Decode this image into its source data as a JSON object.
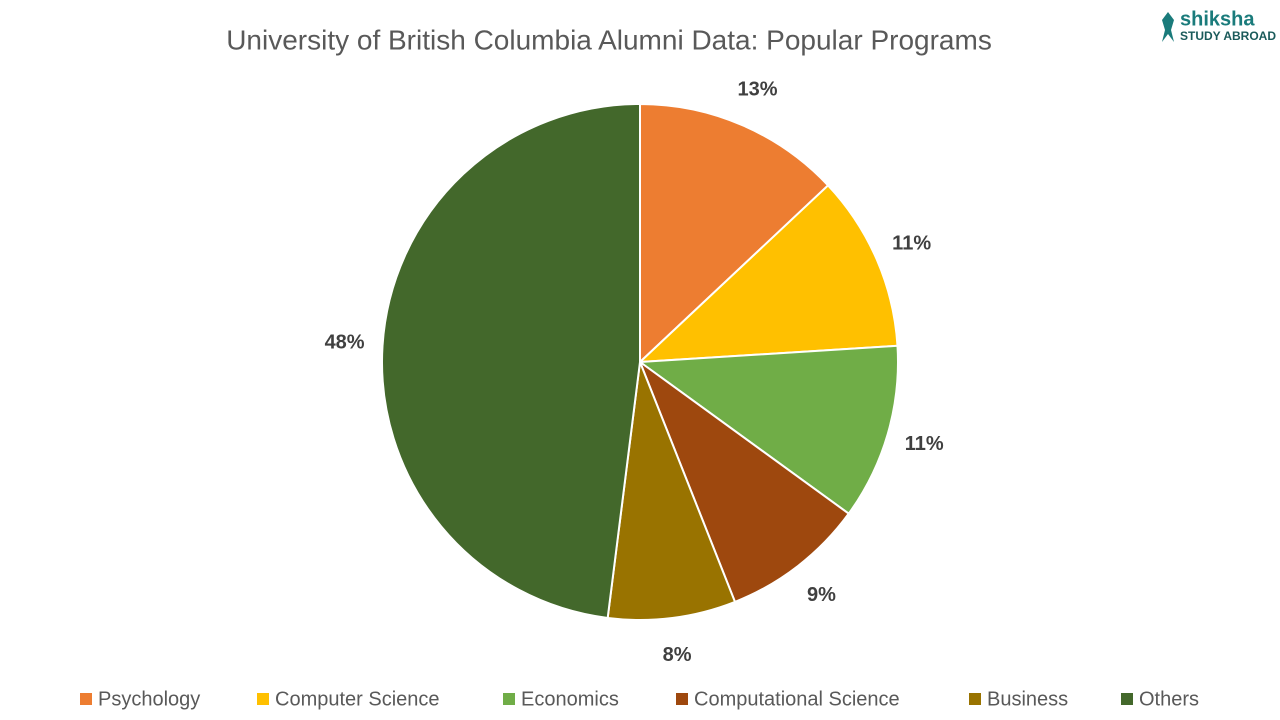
{
  "chart_data": {
    "type": "pie",
    "title": "University of British Columbia Alumni Data: Popular Programs",
    "categories": [
      "Psychology",
      "Computer Science",
      "Economics",
      "Computational Science",
      "Business",
      "Others"
    ],
    "values": [
      13,
      11,
      11,
      9,
      8,
      48
    ],
    "value_labels": [
      "13%",
      "11%",
      "11%",
      "9%",
      "8%",
      "48%"
    ],
    "colors": [
      "#ED7D31",
      "#FFC000",
      "#70AD47",
      "#9E480E",
      "#997300",
      "#43682B"
    ],
    "legend": "bottom"
  },
  "logo": {
    "name": "shiksha",
    "tagline": "STUDY ABROAD"
  }
}
